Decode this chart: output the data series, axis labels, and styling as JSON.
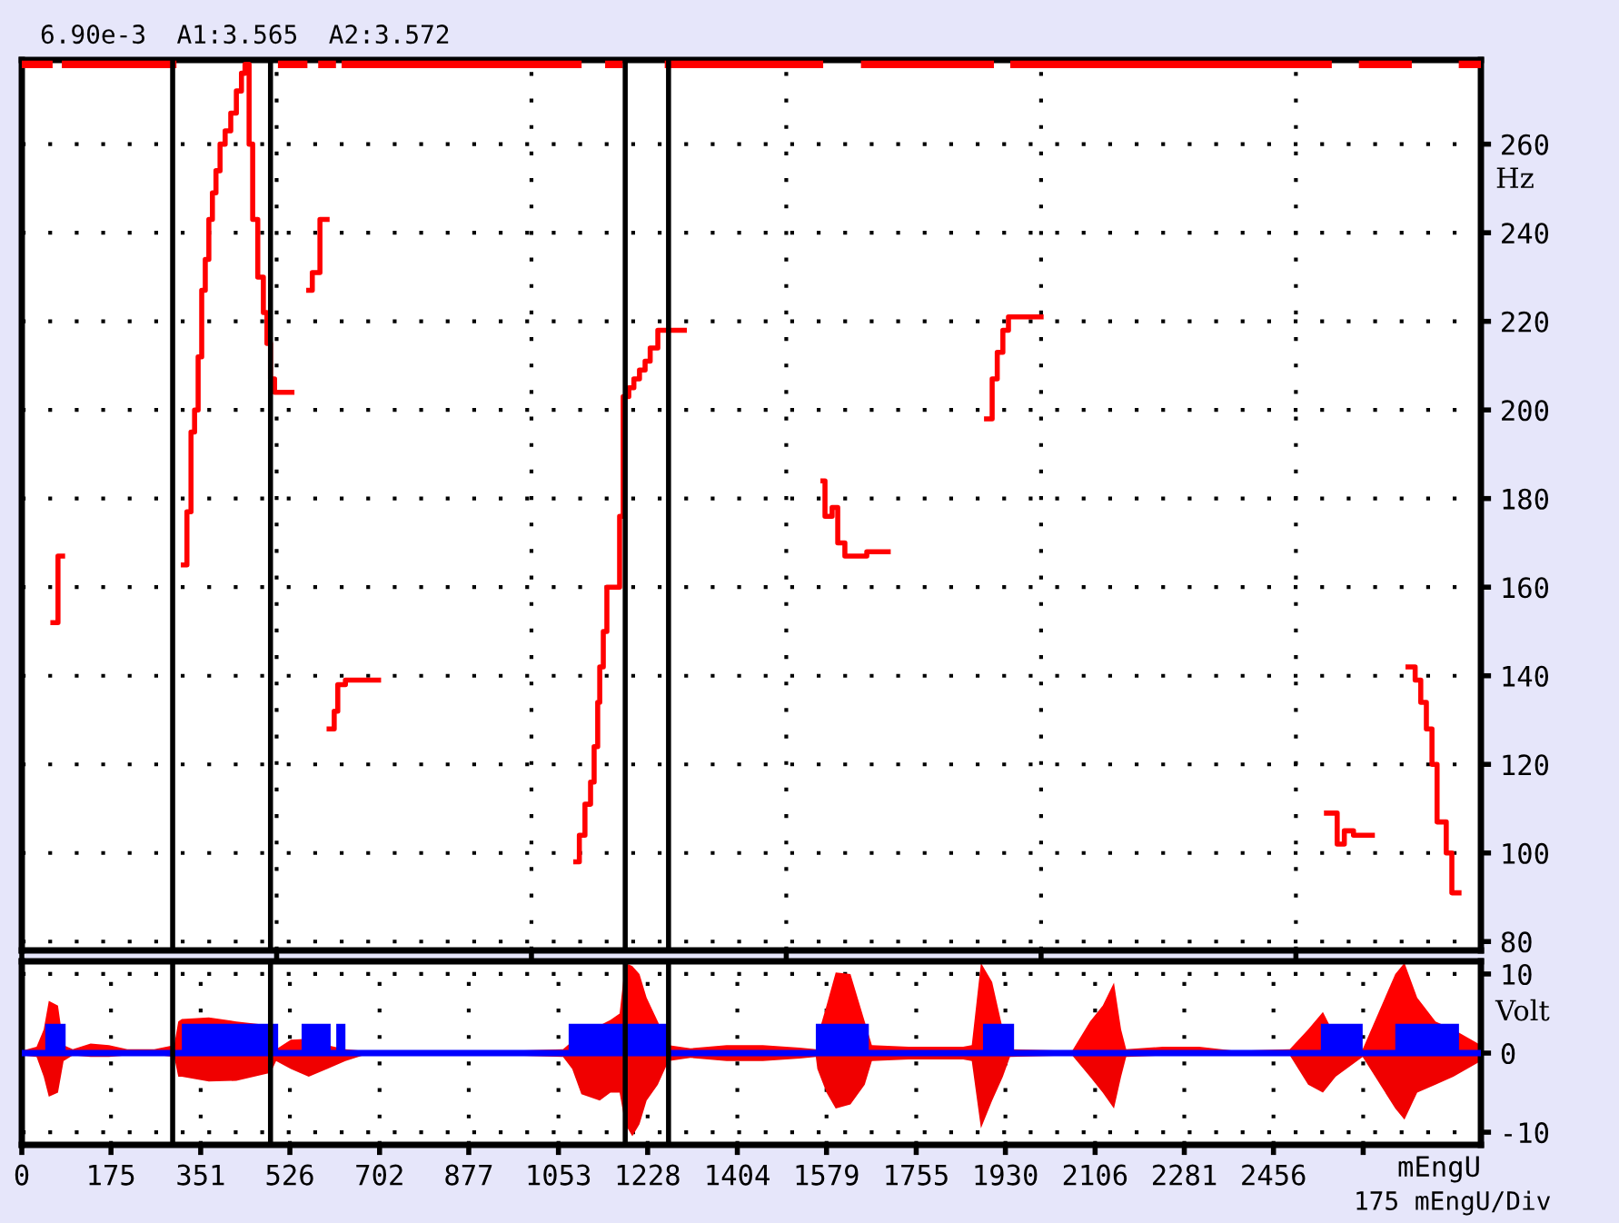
{
  "chart_data": [
    {
      "type": "step",
      "ylabel": "Hz",
      "annotations": [
        "6.90e-3  A1:3.565  A2:3.572"
      ],
      "xlim": [
        0,
        2863
      ],
      "ylim": [
        78,
        279
      ],
      "yticks": [
        80,
        100,
        120,
        140,
        160,
        180,
        200,
        220,
        240,
        260
      ],
      "tick_labels": "y",
      "grid": true,
      "ref_lines": [
        {
          "axis": "x",
          "value": 296,
          "color": "#000000"
        },
        {
          "axis": "x",
          "value": 488,
          "color": "#000000"
        },
        {
          "axis": "x",
          "value": 1184,
          "color": "#000000"
        },
        {
          "axis": "x",
          "value": 1269,
          "color": "#000000"
        }
      ],
      "series": [
        {
          "type": "line",
          "color": "#ff0000",
          "x": [
            0,
            53,
            70,
            86,
            296,
            400,
            510,
            553,
            575,
            589,
            609,
            620,
            635,
            1091,
            1120,
            1152,
            1172,
            1200,
            1269,
            1565,
            1600,
            1654,
            1900,
            1920,
            1947,
            2563,
            2600,
            2631,
            2720,
            2780,
            2827,
            2863
          ],
          "values": [
            278,
            278,
            null,
            278,
            278,
            null,
            278,
            278,
            null,
            278,
            278,
            null,
            278,
            278,
            null,
            278,
            278,
            null,
            278,
            278,
            null,
            278,
            278,
            null,
            278,
            278,
            null,
            278,
            278,
            null,
            278,
            278
          ]
        },
        {
          "color": "#ff0000",
          "x": [
            61,
            71,
            75,
            80,
            317,
            324,
            332,
            339,
            346,
            353,
            360,
            367,
            374,
            381,
            389,
            399,
            410,
            421,
            431,
            438,
            446,
            453,
            463,
            474,
            481,
            488,
            496,
            503,
            530,
            563,
            570,
            585,
            595,
            599,
            603,
            613,
            620,
            635,
            700,
            1087,
            1094,
            1105,
            1116,
            1123,
            1130,
            1134,
            1141,
            1148,
            1155,
            1173,
            1180,
            1191,
            1201,
            1212,
            1223,
            1233,
            1248,
            1262,
            1300,
            1572,
            1576,
            1590,
            1601,
            1615,
            1633,
            1658,
            1700,
            1893,
            1904,
            1914,
            1925,
            1936,
            1947,
            2000,
            2560,
            2570,
            2581,
            2595,
            2613,
            2650,
            2720,
            2734,
            2745,
            2756,
            2767,
            2777,
            2795,
            2806,
            2820
          ],
          "values": [
            152,
            167,
            167,
            null,
            165,
            177,
            195,
            200,
            212,
            227,
            234,
            243,
            249,
            254,
            260,
            263,
            267,
            272,
            276,
            278,
            260,
            243,
            230,
            222,
            215,
            207,
            204,
            204,
            null,
            227,
            231,
            243,
            243,
            null,
            128,
            132,
            138,
            139,
            null,
            98,
            104,
            111,
            116,
            124,
            134,
            142,
            150,
            160,
            160,
            176,
            203,
            205,
            207,
            209,
            211,
            214,
            218,
            218,
            null,
            184,
            176,
            178,
            170,
            167,
            167,
            168,
            null,
            198,
            207,
            213,
            218,
            221,
            221,
            null,
            109,
            109,
            102,
            105,
            104,
            null,
            142,
            139,
            134,
            128,
            120,
            107,
            100,
            91,
            91
          ]
        }
      ]
    },
    {
      "type": "area",
      "stacked": false,
      "ylabel": "Volt",
      "xlabel": "mEngU",
      "annotations": [
        "175 mEngU/Div"
      ],
      "xlim": [
        0,
        2863
      ],
      "xticks": [
        0,
        175,
        351,
        526,
        702,
        877,
        1053,
        1228,
        1404,
        1579,
        1755,
        1930,
        2106,
        2281,
        2456,
        {
          "value": 2632,
          "label": null
        }
      ],
      "ylim": [
        -11.6,
        11.6
      ],
      "yticks": [
        -10,
        0,
        10
      ],
      "grid": true,
      "ref_lines": [
        {
          "axis": "x",
          "value": 296,
          "color": "#000000"
        },
        {
          "axis": "x",
          "value": 488,
          "color": "#000000"
        },
        {
          "axis": "x",
          "value": 1184,
          "color": "#000000"
        },
        {
          "axis": "x",
          "value": 1269,
          "color": "#000000"
        },
        {
          "axis": "y",
          "value": 0,
          "color": "#0000ff"
        }
      ],
      "x": [
        0,
        29,
        43,
        53,
        71,
        82,
        100,
        135,
        171,
        207,
        260,
        299,
        307,
        314,
        367,
        421,
        488,
        499,
        528,
        563,
        599,
        635,
        670,
        777,
        955,
        1062,
        1080,
        1098,
        1134,
        1155,
        1173,
        1184,
        1198,
        1212,
        1226,
        1248,
        1269,
        1312,
        1383,
        1454,
        1526,
        1558,
        1561,
        1579,
        1597,
        1626,
        1654,
        1668,
        1740,
        1847,
        1864,
        1882,
        1904,
        1925,
        1939,
        2061,
        2096,
        2121,
        2143,
        2157,
        2167,
        2239,
        2310,
        2381,
        2488,
        2524,
        2553,
        2578,
        2631,
        2695,
        2713,
        2738,
        2774,
        2809,
        2863
      ],
      "series": [
        {
          "color": "#ff0000",
          "values": [
            0.3,
            0.8,
            3,
            6.6,
            6,
            1,
            0.5,
            1.2,
            1,
            0.5,
            0.5,
            1,
            4,
            4.3,
            4.5,
            4,
            3.5,
            0.5,
            1.7,
            1.8,
            1,
            0.5,
            0.3,
            0.3,
            0.3,
            0.5,
            1.5,
            2,
            3.5,
            4.2,
            5,
            11.4,
            11,
            10,
            7,
            4,
            1,
            0.6,
            1,
            1,
            0.7,
            0.5,
            2,
            6,
            10.2,
            10,
            4,
            1,
            0.8,
            0.8,
            1,
            11.4,
            9,
            3,
            0.5,
            0.3,
            4,
            6,
            8.9,
            3,
            0.5,
            0.8,
            0.8,
            0.3,
            0.5,
            3,
            5.2,
            2,
            0.5,
            10,
            11.4,
            7,
            4,
            3,
            1
          ]
        },
        {
          "color": "#f00000",
          "values": [
            -0.3,
            -0.5,
            -3,
            -5.5,
            -5,
            -1,
            -0.3,
            -0.5,
            -0.5,
            -0.3,
            -0.2,
            -0.5,
            -3,
            -3,
            -3.6,
            -3.5,
            -2.5,
            -1,
            -2,
            -3,
            -2,
            -1,
            -0.3,
            -0.3,
            -0.3,
            -0.5,
            -2,
            -5.2,
            -6,
            -5,
            -5,
            -9,
            -10.5,
            -9,
            -6,
            -4,
            -1,
            -0.6,
            -1,
            -1,
            -0.7,
            -0.5,
            -2,
            -5,
            -7,
            -6.5,
            -4,
            -1,
            -0.8,
            -0.8,
            -1,
            -9.5,
            -6,
            -3,
            -0.5,
            -0.3,
            -3,
            -5,
            -7,
            -3,
            -0.5,
            -0.3,
            -0.3,
            -0.3,
            -0.3,
            -4,
            -5,
            -3,
            -0.5,
            -7,
            -8.4,
            -5,
            -4,
            -3,
            -1
          ]
        },
        {
          "color": "#0000ff",
          "x": [
            46,
            86,
            87,
            314,
            503,
            504,
            549,
            606,
            607,
            617,
            635,
            636,
            1073,
            1269,
            1270,
            1558,
            1662,
            1663,
            1886,
            1947,
            1948,
            2549,
            2631,
            2632,
            2695,
            2820
          ],
          "values": [
            3.7,
            3.7,
            null,
            3.7,
            3.7,
            null,
            3.7,
            3.7,
            null,
            3.7,
            3.7,
            null,
            3.7,
            3.7,
            null,
            3.7,
            3.7,
            null,
            3.7,
            3.7,
            null,
            3.7,
            3.7,
            null,
            3.7,
            3.7
          ]
        }
      ]
    }
  ]
}
